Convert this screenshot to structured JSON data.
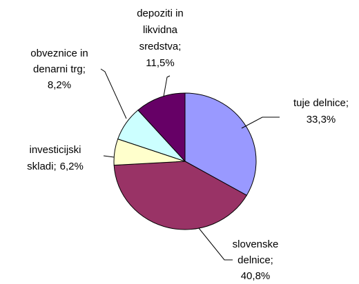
{
  "chart_data": {
    "type": "pie",
    "categories": [
      [
        "tuje delnice;"
      ],
      [
        "slovenske",
        "delnice;"
      ],
      [
        "investicijski",
        "skladi;"
      ],
      [
        "obveznice in",
        "denarni trg;"
      ],
      [
        "depoziti in",
        "likvidna",
        "sredstva;"
      ]
    ],
    "values": [
      33.3,
      40.8,
      6.2,
      8.2,
      11.5
    ],
    "value_labels": [
      "33,3%",
      "40,8%",
      "6,2%",
      "8,2%",
      "11,5%"
    ],
    "colors": [
      "#9999ff",
      "#993366",
      "#ffffcc",
      "#ccffff",
      "#660066"
    ]
  }
}
